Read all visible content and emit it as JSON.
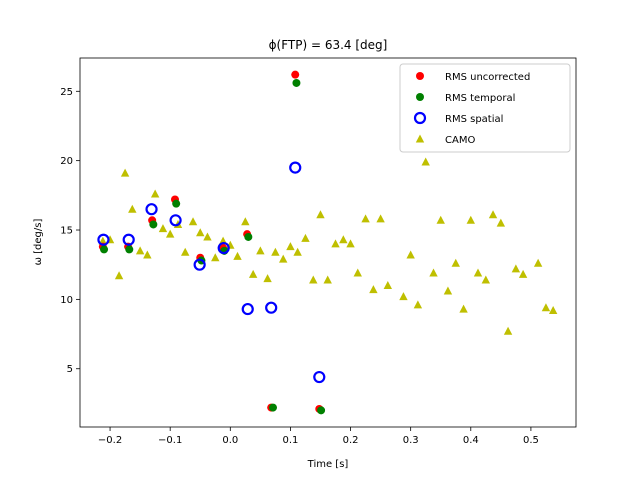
{
  "chart_data": {
    "type": "scatter",
    "title": "ϕ(FTP) = 63.4 [deg]",
    "xlabel": "Time [s]",
    "ylabel": "ω [deg/s]",
    "xlim": [
      -0.25,
      0.575
    ],
    "ylim": [
      0.8,
      27.4
    ],
    "xticks": [
      -0.2,
      -0.1,
      0.0,
      0.1,
      0.2,
      0.3,
      0.4,
      0.5
    ],
    "xtick_labels": [
      "−0.2",
      "−0.1",
      "0.0",
      "0.1",
      "0.2",
      "0.3",
      "0.4",
      "0.5"
    ],
    "yticks": [
      5,
      10,
      15,
      20,
      25
    ],
    "ytick_labels": [
      "5",
      "10",
      "15",
      "20",
      "25"
    ],
    "legend_position": "top-right",
    "series": [
      {
        "name": "RMS uncorrected",
        "marker": "circle",
        "color": "#ff0000",
        "points": [
          [
            -0.212,
            13.8
          ],
          [
            -0.17,
            13.8
          ],
          [
            -0.13,
            15.7
          ],
          [
            -0.092,
            17.2
          ],
          [
            -0.05,
            13.0
          ],
          [
            -0.012,
            13.7
          ],
          [
            0.028,
            14.7
          ],
          [
            0.068,
            2.2
          ],
          [
            0.108,
            26.2
          ],
          [
            0.148,
            2.1
          ]
        ]
      },
      {
        "name": "RMS temporal",
        "marker": "circle",
        "color": "#008000",
        "points": [
          [
            -0.21,
            13.6
          ],
          [
            -0.168,
            13.6
          ],
          [
            -0.128,
            15.4
          ],
          [
            -0.09,
            16.9
          ],
          [
            -0.048,
            12.8
          ],
          [
            -0.01,
            13.5
          ],
          [
            0.03,
            14.5
          ],
          [
            0.071,
            2.2
          ],
          [
            0.11,
            25.6
          ],
          [
            0.151,
            2.0
          ]
        ]
      },
      {
        "name": "RMS spatial",
        "marker": "open-circle",
        "color": "#0000ff",
        "points": [
          [
            -0.211,
            14.3
          ],
          [
            -0.169,
            14.3
          ],
          [
            -0.131,
            16.5
          ],
          [
            -0.091,
            15.7
          ],
          [
            -0.051,
            12.5
          ],
          [
            -0.011,
            13.7
          ],
          [
            0.029,
            9.3
          ],
          [
            0.068,
            9.4
          ],
          [
            0.108,
            19.5
          ],
          [
            0.148,
            4.4
          ]
        ]
      },
      {
        "name": "CAMO",
        "marker": "triangle",
        "color": "#bfbf00",
        "points": [
          [
            -0.212,
            14.2
          ],
          [
            -0.2,
            14.3
          ],
          [
            -0.185,
            11.7
          ],
          [
            -0.175,
            19.1
          ],
          [
            -0.163,
            16.5
          ],
          [
            -0.15,
            13.5
          ],
          [
            -0.138,
            13.2
          ],
          [
            -0.125,
            17.6
          ],
          [
            -0.112,
            15.1
          ],
          [
            -0.1,
            14.7
          ],
          [
            -0.087,
            15.4
          ],
          [
            -0.075,
            13.4
          ],
          [
            -0.062,
            15.6
          ],
          [
            -0.05,
            14.8
          ],
          [
            -0.038,
            14.5
          ],
          [
            -0.025,
            13.0
          ],
          [
            -0.012,
            14.2
          ],
          [
            0.0,
            13.9
          ],
          [
            0.012,
            13.1
          ],
          [
            0.025,
            15.6
          ],
          [
            0.038,
            11.8
          ],
          [
            0.05,
            13.5
          ],
          [
            0.062,
            11.5
          ],
          [
            0.075,
            13.4
          ],
          [
            0.088,
            12.9
          ],
          [
            0.1,
            13.8
          ],
          [
            0.112,
            13.4
          ],
          [
            0.125,
            14.4
          ],
          [
            0.138,
            11.4
          ],
          [
            0.15,
            16.1
          ],
          [
            0.162,
            11.4
          ],
          [
            0.175,
            14.0
          ],
          [
            0.188,
            14.3
          ],
          [
            0.2,
            14.0
          ],
          [
            0.212,
            11.9
          ],
          [
            0.225,
            15.8
          ],
          [
            0.238,
            10.7
          ],
          [
            0.25,
            15.8
          ],
          [
            0.262,
            11.0
          ],
          [
            0.288,
            10.2
          ],
          [
            0.3,
            13.2
          ],
          [
            0.312,
            9.6
          ],
          [
            0.325,
            19.9
          ],
          [
            0.338,
            11.9
          ],
          [
            0.35,
            15.7
          ],
          [
            0.362,
            10.6
          ],
          [
            0.375,
            12.6
          ],
          [
            0.388,
            9.3
          ],
          [
            0.4,
            15.7
          ],
          [
            0.412,
            11.9
          ],
          [
            0.425,
            11.4
          ],
          [
            0.437,
            16.1
          ],
          [
            0.45,
            15.5
          ],
          [
            0.462,
            7.7
          ],
          [
            0.475,
            12.2
          ],
          [
            0.487,
            11.8
          ],
          [
            0.512,
            12.6
          ],
          [
            0.525,
            9.4
          ],
          [
            0.537,
            9.2
          ]
        ]
      }
    ]
  }
}
